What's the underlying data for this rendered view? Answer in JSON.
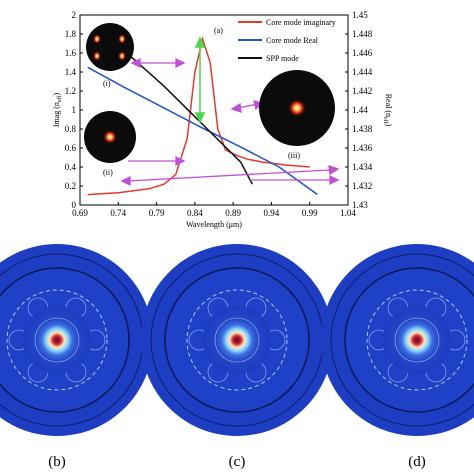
{
  "chart_data": {
    "type": "line",
    "panel_label": "(a)",
    "xlabel": "Wavelength (μm)",
    "ylabel_left": "Imag (n",
    "ylabel_left_sub": "eff",
    "ylabel_left_end": ")",
    "ylabel_right": "Real (n",
    "ylabel_right_sub": "eff",
    "ylabel_right_end": ")",
    "xlim": [
      0.69,
      1.04
    ],
    "ylim_left": [
      0,
      2
    ],
    "ylim_right": [
      1.43,
      1.45
    ],
    "x_ticks": [
      "0.69",
      "0.74",
      "0.79",
      "0.84",
      "0.89",
      "0.94",
      "0.99",
      "1.04"
    ],
    "y_left_ticks": [
      "0",
      "0.2",
      "0.4",
      "0.6",
      "0.8",
      "1",
      "1.2",
      "1.4",
      "1.6",
      "1.8",
      "2"
    ],
    "y_right_ticks": [
      "1.43",
      "1.432",
      "1.434",
      "1.436",
      "1.438",
      "1.44",
      "1.442",
      "1.444",
      "1.446",
      "1.448",
      "1.45"
    ],
    "legend_position": "top-right",
    "series": [
      {
        "name": "Core mode imaginary",
        "axis": "left",
        "color": "#e8382b",
        "x": [
          0.7,
          0.72,
          0.74,
          0.76,
          0.78,
          0.8,
          0.815,
          0.83,
          0.84,
          0.85,
          0.86,
          0.87,
          0.88,
          0.895,
          0.91,
          0.93,
          0.96,
          0.99
        ],
        "values": [
          0.11,
          0.12,
          0.13,
          0.15,
          0.17,
          0.22,
          0.32,
          0.7,
          1.4,
          1.75,
          1.5,
          0.8,
          0.58,
          0.52,
          0.48,
          0.45,
          0.42,
          0.4
        ]
      },
      {
        "name": "Core mode Real",
        "axis": "right",
        "color": "#1f54c8",
        "x": [
          0.7,
          0.75,
          0.8,
          0.85,
          0.9,
          0.95,
          1.0
        ],
        "values": [
          1.4445,
          1.4423,
          1.4402,
          1.4381,
          1.4361,
          1.434,
          1.4311
        ]
      },
      {
        "name": "SPP mode",
        "axis": "right",
        "color": "#111111",
        "x": [
          0.74,
          0.8,
          0.85,
          0.9,
          0.915
        ],
        "values": [
          1.4468,
          1.4425,
          1.4385,
          1.4345,
          1.4322
        ]
      }
    ],
    "annotations": [
      "(i)",
      "(ii)",
      "(iii)"
    ],
    "bottom_panels": [
      "(b)",
      "(c)",
      "(d)"
    ]
  }
}
